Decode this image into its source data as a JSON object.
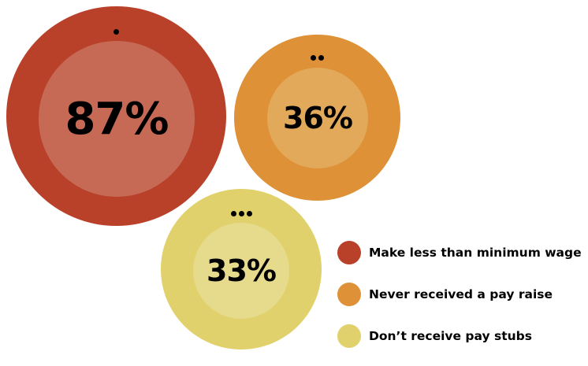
{
  "chart_data": {
    "type": "bubble",
    "title": "",
    "series": [
      {
        "name": "Make less than minimum wage",
        "value": 87,
        "label": "87%",
        "outer_color": "#b9412a",
        "inner_color": "#c66a56",
        "marker_dots": 1
      },
      {
        "name": "Never received a pay raise",
        "value": 36,
        "label": "36%",
        "outer_color": "#de9136",
        "inner_color": "#e3a95a",
        "marker_dots": 2
      },
      {
        "name": "Don’t receive pay stubs",
        "value": 33,
        "label": "33%",
        "outer_color": "#e1d16c",
        "inner_color": "#e6da8c",
        "marker_dots": 3
      }
    ],
    "legend_placement": "bottom-right"
  }
}
